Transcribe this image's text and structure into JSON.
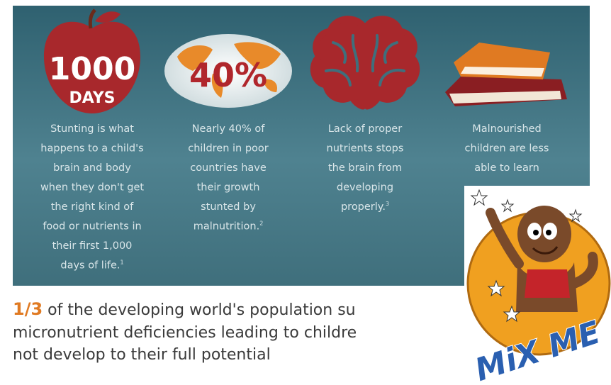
{
  "panels": [
    {
      "icon_lines": [
        "1000",
        "DAYS"
      ],
      "lines": [
        "Stunting is what",
        "happens to a child's",
        "brain and body",
        "when they don't get",
        "the right kind of",
        "food or nutrients in",
        "their first 1,000",
        "days of life."
      ],
      "note": "1"
    },
    {
      "icon_lines": [
        "40%"
      ],
      "lines": [
        "Nearly 40% of",
        "children in poor",
        "countries have",
        "their growth",
        "stunted by",
        "malnutrition."
      ],
      "note": "2"
    },
    {
      "icon_lines": [],
      "lines": [
        "Lack of proper",
        "nutrients stops",
        "the brain from",
        "developing",
        "properly."
      ],
      "note": "3"
    },
    {
      "icon_lines": [],
      "lines": [
        "Malnourished",
        "children are less",
        "able to learn"
      ],
      "note": ""
    }
  ],
  "statement": {
    "highlight": "1/3",
    "lines": [
      " of the developing world's population su",
      "micronutrient deficiencies leading to childre",
      "not develop to their full potential"
    ]
  },
  "logo": {
    "text": "MiX ME"
  }
}
